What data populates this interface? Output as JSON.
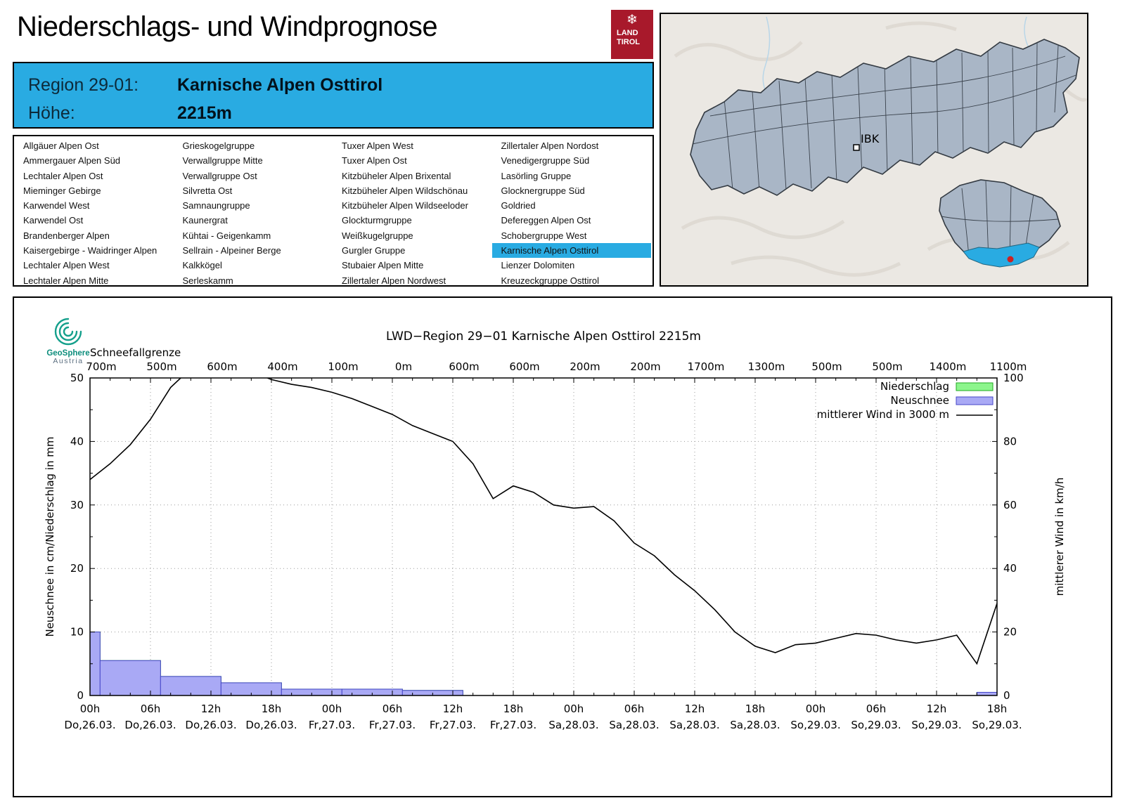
{
  "header": {
    "title": "Niederschlags- und Windprognose",
    "logo": {
      "snowflake_icon": "❄",
      "line1": "LAND",
      "line2": "TIROL",
      "color": "#a8192b"
    }
  },
  "region_info": {
    "region_label": "Region 29-01:",
    "region_value": "Karnische Alpen Osttirol",
    "elevation_label": "Höhe:",
    "elevation_value": "2215m",
    "bg_color": "#29abe2"
  },
  "region_list": {
    "selected": "Karnische Alpen Osttirol",
    "columns": [
      [
        "Allgäuer Alpen Ost",
        "Ammergauer Alpen Süd",
        "Lechtaler Alpen Ost",
        "Mieminger Gebirge",
        "Karwendel West",
        "Karwendel Ost",
        "Brandenberger Alpen",
        "Kaisergebirge - Waidringer Alpen",
        "Lechtaler Alpen West",
        "Lechtaler Alpen Mitte"
      ],
      [
        "Grieskogelgruppe",
        "Verwallgruppe Mitte",
        "Verwallgruppe Ost",
        "Silvretta Ost",
        "Samnaungruppe",
        "Kaunergrat",
        "Kühtai - Geigenkamm",
        "Sellrain - Alpeiner Berge",
        "Kalkkögel",
        "Serleskamm"
      ],
      [
        "Tuxer Alpen West",
        "Tuxer Alpen Ost",
        "Kitzbüheler Alpen Brixental",
        "Kitzbüheler Alpen Wildschönau",
        "Kitzbüheler Alpen Wildseeloder",
        "Glockturmgruppe",
        "Weißkugelgruppe",
        "Gurgler Gruppe",
        "Stubaier Alpen Mitte",
        "Zillertaler Alpen Nordwest"
      ],
      [
        "Zillertaler Alpen Nordost",
        "Venedigergruppe Süd",
        "Lasörling Gruppe",
        "Glocknergruppe Süd",
        "Goldried",
        "Defereggen Alpen Ost",
        "Schobergruppe West",
        "Karnische Alpen Osttirol",
        "Lienzer Dolomiten",
        "Kreuzeckgruppe Osttirol"
      ]
    ]
  },
  "map": {
    "city_label": "IBK",
    "highlight_color": "#29abe2",
    "region_fill": "#a9b6c6",
    "marker_color": "#cc2222"
  },
  "chart_data": {
    "type": "line+bar",
    "title": "LWD−Region 29−01 Karnische Alpen Osttirol 2215m",
    "top_axis_label": "Schneefallgrenze",
    "snowline_values": [
      "700m",
      "500m",
      "600m",
      "400m",
      "100m",
      "0m",
      "600m",
      "600m",
      "200m",
      "200m",
      "1700m",
      "1300m",
      "500m",
      "500m",
      "1400m",
      "1100m"
    ],
    "x_ticks": [
      {
        "time": "00h",
        "date": "Do,26.03."
      },
      {
        "time": "06h",
        "date": "Do,26.03."
      },
      {
        "time": "12h",
        "date": "Do,26.03."
      },
      {
        "time": "18h",
        "date": "Do,26.03."
      },
      {
        "time": "00h",
        "date": "Fr,27.03."
      },
      {
        "time": "06h",
        "date": "Fr,27.03."
      },
      {
        "time": "12h",
        "date": "Fr,27.03."
      },
      {
        "time": "18h",
        "date": "Fr,27.03."
      },
      {
        "time": "00h",
        "date": "Sa,28.03."
      },
      {
        "time": "06h",
        "date": "Sa,28.03."
      },
      {
        "time": "12h",
        "date": "Sa,28.03."
      },
      {
        "time": "18h",
        "date": "Sa,28.03."
      },
      {
        "time": "00h",
        "date": "So,29.03."
      },
      {
        "time": "06h",
        "date": "So,29.03."
      },
      {
        "time": "12h",
        "date": "So,29.03."
      },
      {
        "time": "18h",
        "date": "So,29.03."
      }
    ],
    "hours_total": 90,
    "ylabel_left": "Neuschnee in cm/Niederschlag in mm",
    "ylabel_right": "mittlerer Wind in km/h",
    "ylim_left": [
      0,
      50
    ],
    "ylim_right": [
      0,
      100
    ],
    "y_ticks_left": [
      0,
      10,
      20,
      30,
      40,
      50
    ],
    "y_ticks_right": [
      0,
      20,
      40,
      60,
      80,
      100
    ],
    "grid": true,
    "legend_position": "top-right",
    "legend": [
      {
        "label": "Niederschlag",
        "type": "box",
        "color": "#8cf58c",
        "edge": "#22aa22"
      },
      {
        "label": "Neuschnee",
        "type": "box",
        "color": "#a9a9f5",
        "edge": "#4646c8"
      },
      {
        "label": "mittlerer Wind in 3000 m",
        "type": "line",
        "color": "#000000"
      }
    ],
    "colors": {
      "neuschnee_fill": "#a9a9f5",
      "neuschnee_edge": "#4646c8",
      "niederschlag_fill": "#8cf58c",
      "niederschlag_edge": "#22aa22",
      "wind_line": "#000000"
    },
    "niederschlag_bars": [
      {
        "start": 0,
        "end": 1,
        "value": 10
      },
      {
        "start": 1,
        "end": 7,
        "value": 5.5
      },
      {
        "start": 7,
        "end": 13,
        "value": 3
      },
      {
        "start": 13,
        "end": 19,
        "value": 2
      },
      {
        "start": 19,
        "end": 25,
        "value": 1
      },
      {
        "start": 25,
        "end": 31,
        "value": 1
      },
      {
        "start": 31,
        "end": 37,
        "value": 0.8
      },
      {
        "start": 88,
        "end": 90,
        "value": 0.5
      }
    ],
    "neuschnee_bars": [
      {
        "start": 0,
        "end": 1,
        "value": 10
      },
      {
        "start": 1,
        "end": 7,
        "value": 5.5
      },
      {
        "start": 7,
        "end": 13,
        "value": 3
      },
      {
        "start": 13,
        "end": 19,
        "value": 2
      },
      {
        "start": 19,
        "end": 25,
        "value": 1
      },
      {
        "start": 25,
        "end": 31,
        "value": 1
      },
      {
        "start": 31,
        "end": 37,
        "value": 0.8
      },
      {
        "start": 88,
        "end": 90,
        "value": 0.5
      }
    ],
    "wind_series": {
      "unit": "km/h",
      "step_hours": 2,
      "values": [
        68,
        73,
        79,
        87,
        97,
        103,
        105,
        105,
        102,
        99.5,
        98,
        97,
        95.5,
        93.5,
        91,
        88.5,
        85,
        82.5,
        80,
        73,
        62,
        66,
        64,
        60,
        59,
        59.5,
        55,
        48,
        44,
        38,
        33,
        27,
        20,
        15.5,
        13.5,
        16,
        16.5,
        18,
        19.5,
        19,
        17.5,
        16.5,
        17.5,
        19,
        10,
        29
      ]
    },
    "source_logo": {
      "line1": "GeoSphere",
      "line2": "Austria"
    }
  }
}
